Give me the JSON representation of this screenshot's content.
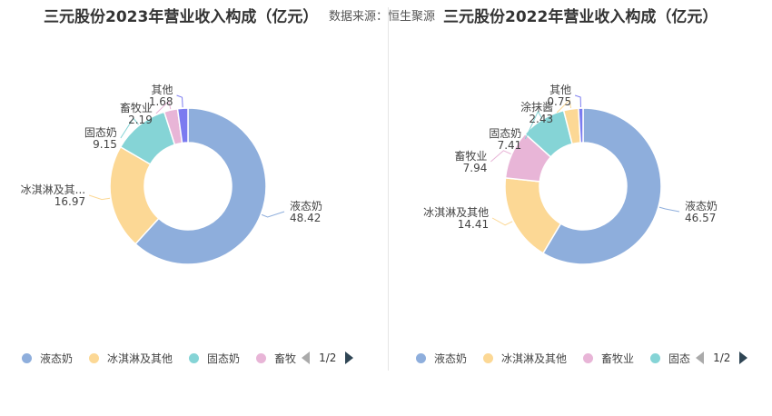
{
  "source_label": "数据来源：恒生聚源",
  "pager": "1/2",
  "chart_data": [
    {
      "type": "pie",
      "variant": "donut",
      "title": "三元股份2023年营业收入构成（亿元）",
      "slices": [
        {
          "name": "液态奶",
          "value": 48.42,
          "label": "液态奶",
          "value_label": "48.42",
          "color": "#8eaedc"
        },
        {
          "name": "冰淇淋及其他",
          "value": 16.97,
          "label": "冰淇淋及其...",
          "value_label": "16.97",
          "color": "#fcd895"
        },
        {
          "name": "固态奶",
          "value": 9.15,
          "label": "固态奶",
          "value_label": "9.15",
          "color": "#85d4d6"
        },
        {
          "name": "畜牧业",
          "value": 2.19,
          "label": "畜牧业",
          "value_label": "2.19",
          "color": "#e8b5d7"
        },
        {
          "name": "其他",
          "value": 1.68,
          "label": "其他",
          "value_label": "1.68",
          "color": "#7b7bf0"
        }
      ],
      "legend": [
        "液态奶",
        "冰淇淋及其他",
        "固态奶",
        "畜牧"
      ],
      "legend_colors": [
        "#8eaedc",
        "#fcd895",
        "#85d4d6",
        "#e8b5d7"
      ],
      "legend_position": "bottom"
    },
    {
      "type": "pie",
      "variant": "donut",
      "title": "三元股份2022年营业收入构成（亿元）",
      "slices": [
        {
          "name": "液态奶",
          "value": 46.57,
          "label": "液态奶",
          "value_label": "46.57",
          "color": "#8eaedc"
        },
        {
          "name": "冰淇淋及其他",
          "value": 14.41,
          "label": "冰淇淋及其他",
          "value_label": "14.41",
          "color": "#fcd895"
        },
        {
          "name": "畜牧业",
          "value": 7.94,
          "label": "畜牧业",
          "value_label": "7.94",
          "color": "#e8b5d7"
        },
        {
          "name": "固态奶",
          "value": 7.41,
          "label": "固态奶",
          "value_label": "7.41",
          "color": "#85d4d6"
        },
        {
          "name": "涂抹酱",
          "value": 2.43,
          "label": "涂抹酱",
          "value_label": "2.43",
          "color": "#fcd895"
        },
        {
          "name": "其他",
          "value": 0.75,
          "label": "其他",
          "value_label": "0.75",
          "color": "#7b7bf0"
        }
      ],
      "legend": [
        "液态奶",
        "冰淇淋及其他",
        "畜牧业",
        "固态"
      ],
      "legend_colors": [
        "#8eaedc",
        "#fcd895",
        "#e8b5d7",
        "#85d4d6"
      ],
      "legend_position": "bottom"
    }
  ]
}
